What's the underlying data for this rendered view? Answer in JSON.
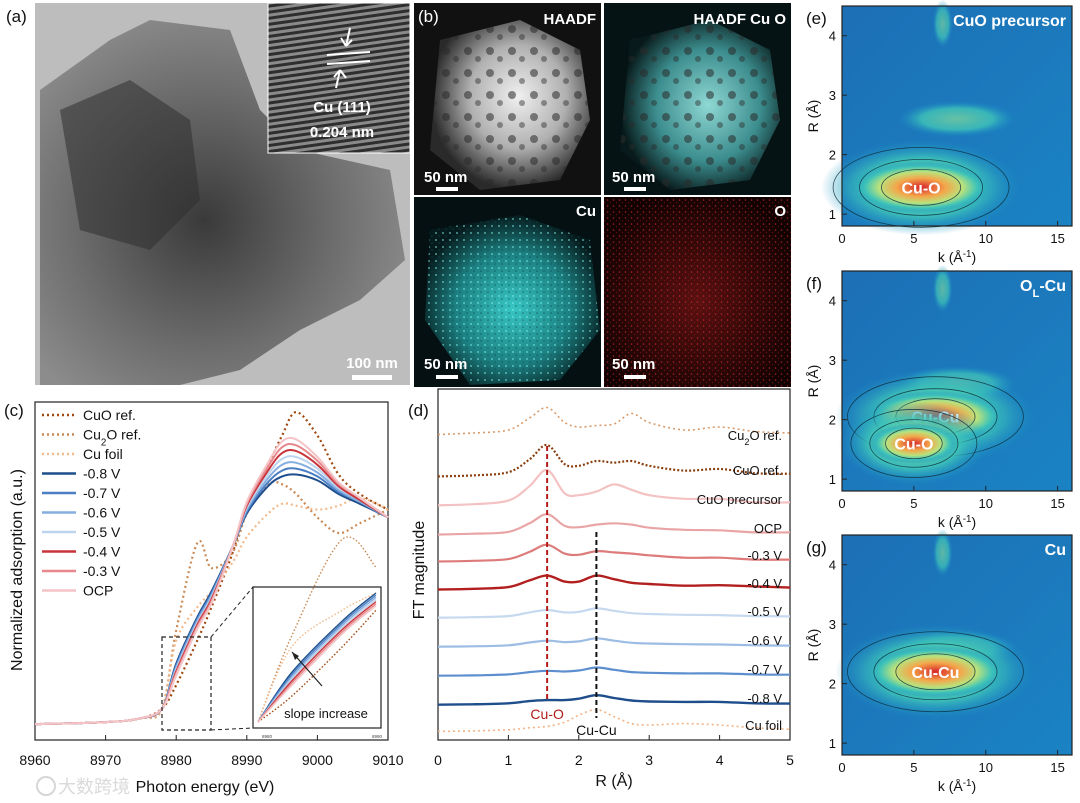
{
  "panels": {
    "a": {
      "label": "(a)",
      "inset_label": "Cu (111)",
      "inset_spacing": "0.204 nm",
      "scale_bar": "100 nm"
    },
    "b": {
      "label": "(b)",
      "tiles": [
        {
          "title": "HAADF",
          "scale_bar": "50 nm"
        },
        {
          "title": "HAADF Cu O",
          "scale_bar": "50 nm"
        },
        {
          "title": "Cu",
          "scale_bar": "50 nm"
        },
        {
          "title": "O",
          "scale_bar": "50 nm"
        }
      ]
    },
    "c": {
      "label": "(c)",
      "xlabel": "Photon energy (eV)",
      "ylabel": "Normalized adsorption (a.u.)",
      "xticks": [
        "8960",
        "8970",
        "8980",
        "8990",
        "9000",
        "9010"
      ],
      "inset_annotation": "slope increase",
      "inset_ticks": [
        "8980",
        "8990"
      ],
      "legend": [
        {
          "prefix": "CuO ref.",
          "sub": "",
          "suffix": "",
          "color": "#a0480f",
          "dash": "2,3"
        },
        {
          "prefix": "Cu",
          "sub": "2",
          "suffix": "O ref.",
          "color": "#c98a55",
          "dash": "2,3"
        },
        {
          "prefix": "Cu foil",
          "sub": "",
          "suffix": "",
          "color": "#f2b98a",
          "dash": "2,3"
        },
        {
          "prefix": "-0.8 V",
          "sub": "",
          "suffix": "",
          "color": "#1f4e8c",
          "dash": ""
        },
        {
          "prefix": "-0.7 V",
          "sub": "",
          "suffix": "",
          "color": "#4a7fc4",
          "dash": ""
        },
        {
          "prefix": "-0.6 V",
          "sub": "",
          "suffix": "",
          "color": "#86aee0",
          "dash": ""
        },
        {
          "prefix": "-0.5 V",
          "sub": "",
          "suffix": "",
          "color": "#bcd4ee",
          "dash": ""
        },
        {
          "prefix": "-0.4 V",
          "sub": "",
          "suffix": "",
          "color": "#c9343a",
          "dash": ""
        },
        {
          "prefix": "-0.3 V",
          "sub": "",
          "suffix": "",
          "color": "#e8888d",
          "dash": ""
        },
        {
          "prefix": "OCP",
          "sub": "",
          "suffix": "",
          "color": "#f4c4c6",
          "dash": ""
        }
      ]
    },
    "d": {
      "label": "(d)",
      "xlabel": "R (Å)",
      "ylabel": "FT magnitude",
      "xticks": [
        "0",
        "1",
        "2",
        "3",
        "4",
        "5"
      ],
      "marker_cuo": "Cu-O",
      "marker_cucu": "Cu-Cu",
      "traces": [
        {
          "prefix": "Cu",
          "sub": "2",
          "suffix": "O ref.",
          "color": "#d89a6a",
          "dash": "2,3",
          "width": 1.6
        },
        {
          "prefix": "CuO ref.",
          "sub": "",
          "suffix": "",
          "color": "#8a3f0f",
          "dash": "2,2",
          "width": 2.2
        },
        {
          "prefix": "CuO precursor",
          "sub": "",
          "suffix": "",
          "color": "#f4c2c2",
          "dash": "",
          "width": 2.2
        },
        {
          "prefix": "OCP",
          "sub": "",
          "suffix": "",
          "color": "#e9a5a5",
          "dash": "",
          "width": 2.2
        },
        {
          "prefix": "-0.3 V",
          "sub": "",
          "suffix": "",
          "color": "#dd7b7b",
          "dash": "",
          "width": 2.2
        },
        {
          "prefix": "-0.4 V",
          "sub": "",
          "suffix": "",
          "color": "#b21f1f",
          "dash": "",
          "width": 2.4
        },
        {
          "prefix": "-0.5 V",
          "sub": "",
          "suffix": "",
          "color": "#c6d9ef",
          "dash": "",
          "width": 2.2
        },
        {
          "prefix": "-0.6 V",
          "sub": "",
          "suffix": "",
          "color": "#9dbce3",
          "dash": "",
          "width": 2.2
        },
        {
          "prefix": "-0.7 V",
          "sub": "",
          "suffix": "",
          "color": "#5d8fcf",
          "dash": "",
          "width": 2.2
        },
        {
          "prefix": "-0.8 V",
          "sub": "",
          "suffix": "",
          "color": "#1f4e8c",
          "dash": "",
          "width": 2.4
        },
        {
          "prefix": "Cu foil",
          "sub": "",
          "suffix": "",
          "color": "#f2b487",
          "dash": "2,3",
          "width": 1.6
        }
      ]
    },
    "e": {
      "label": "(e)",
      "title": "CuO precursor",
      "title_sub": "",
      "title_suffix": "",
      "features": [
        "Cu-O"
      ],
      "xlabel": "k (Å",
      "xlabel_sup": "-1",
      "ylabel": "R (Å)",
      "xticks": [
        "0",
        "5",
        "10",
        "15"
      ],
      "yticks": [
        "1",
        "2",
        "3",
        "4"
      ]
    },
    "f": {
      "label": "(f)",
      "title": "O",
      "title_sub": "L",
      "title_suffix": "-Cu",
      "features": [
        "Cu-Cu",
        "Cu-O"
      ],
      "xlabel": "k (Å",
      "xlabel_sup": "-1",
      "ylabel": "R (Å)",
      "xticks": [
        "0",
        "5",
        "10",
        "15"
      ],
      "yticks": [
        "1",
        "2",
        "3",
        "4"
      ]
    },
    "g": {
      "label": "(g)",
      "title": "Cu",
      "title_sub": "",
      "title_suffix": "",
      "features": [
        "Cu-Cu"
      ],
      "xlabel": "k (Å",
      "xlabel_sup": "-1",
      "ylabel": "R (Å)",
      "xticks": [
        "0",
        "5",
        "10",
        "15"
      ],
      "yticks": [
        "1",
        "2",
        "3",
        "4"
      ]
    }
  },
  "watermark": "大数跨境",
  "chart_data": [
    {
      "type": "line",
      "panel": "c",
      "title": "",
      "xlabel": "Photon energy (eV)",
      "ylabel": "Normalized adsorption (a.u.)",
      "xlim": [
        8960,
        9010
      ],
      "x": [
        8960,
        8970,
        8975,
        8978,
        8980,
        8983,
        8985,
        8988,
        8990,
        8993,
        8995,
        8997,
        9000,
        9003,
        9006,
        9010
      ],
      "series": [
        {
          "name": "CuO ref.",
          "values": [
            0.02,
            0.03,
            0.05,
            0.1,
            0.22,
            0.45,
            0.62,
            0.9,
            1.15,
            1.35,
            1.5,
            1.62,
            1.5,
            1.3,
            1.2,
            1.12
          ]
        },
        {
          "name": "Cu2O ref.",
          "values": [
            0.02,
            0.03,
            0.05,
            0.1,
            0.5,
            0.95,
            0.82,
            0.9,
            1.1,
            1.25,
            1.25,
            1.2,
            1.08,
            1.0,
            1.05,
            1.12
          ]
        },
        {
          "name": "Cu foil",
          "values": [
            0.02,
            0.03,
            0.05,
            0.1,
            0.45,
            0.62,
            0.7,
            0.85,
            0.98,
            1.1,
            1.15,
            1.14,
            1.12,
            1.14,
            1.18,
            1.12
          ]
        },
        {
          "name": "-0.8 V",
          "values": [
            0.02,
            0.03,
            0.05,
            0.1,
            0.33,
            0.57,
            0.7,
            0.93,
            1.1,
            1.24,
            1.29,
            1.3,
            1.27,
            1.2,
            1.15,
            1.08
          ]
        },
        {
          "name": "-0.7 V",
          "values": [
            0.02,
            0.03,
            0.05,
            0.1,
            0.32,
            0.56,
            0.69,
            0.93,
            1.11,
            1.26,
            1.32,
            1.33,
            1.29,
            1.21,
            1.16,
            1.08
          ]
        },
        {
          "name": "-0.6 V",
          "values": [
            0.02,
            0.03,
            0.05,
            0.1,
            0.31,
            0.55,
            0.68,
            0.93,
            1.12,
            1.28,
            1.35,
            1.36,
            1.31,
            1.22,
            1.16,
            1.08
          ]
        },
        {
          "name": "-0.5 V",
          "values": [
            0.02,
            0.03,
            0.05,
            0.1,
            0.3,
            0.54,
            0.67,
            0.93,
            1.13,
            1.3,
            1.38,
            1.39,
            1.33,
            1.23,
            1.17,
            1.08
          ]
        },
        {
          "name": "-0.4 V",
          "values": [
            0.02,
            0.03,
            0.05,
            0.1,
            0.29,
            0.53,
            0.66,
            0.93,
            1.14,
            1.32,
            1.41,
            1.42,
            1.35,
            1.24,
            1.17,
            1.08
          ]
        },
        {
          "name": "-0.3 V",
          "values": [
            0.02,
            0.03,
            0.05,
            0.1,
            0.28,
            0.52,
            0.65,
            0.93,
            1.15,
            1.34,
            1.44,
            1.45,
            1.37,
            1.25,
            1.18,
            1.08
          ]
        },
        {
          "name": "OCP",
          "values": [
            0.02,
            0.03,
            0.05,
            0.1,
            0.27,
            0.51,
            0.64,
            0.93,
            1.16,
            1.36,
            1.47,
            1.48,
            1.39,
            1.26,
            1.18,
            1.08
          ]
        }
      ]
    },
    {
      "type": "line",
      "panel": "d",
      "title": "",
      "xlabel": "R (Å)",
      "ylabel": "FT magnitude",
      "xlim": [
        0,
        5
      ],
      "x": [
        0,
        0.5,
        1.0,
        1.3,
        1.55,
        1.8,
        2.0,
        2.25,
        2.5,
        2.75,
        3.0,
        3.5,
        4.0,
        4.5,
        5.0
      ],
      "peaks": {
        "Cu-O": 1.55,
        "Cu-Cu": 2.25
      },
      "series": [
        {
          "name": "Cu2O ref.",
          "values": [
            0.05,
            0.1,
            0.2,
            0.6,
            0.95,
            0.45,
            0.3,
            0.35,
            0.4,
            0.75,
            0.45,
            0.2,
            0.3,
            0.15,
            0.1
          ]
        },
        {
          "name": "CuO ref.",
          "values": [
            0.02,
            0.05,
            0.15,
            0.55,
            1.0,
            0.4,
            0.35,
            0.5,
            0.45,
            0.5,
            0.35,
            0.2,
            0.25,
            0.12,
            0.1
          ]
        },
        {
          "name": "CuO precursor",
          "values": [
            0.02,
            0.05,
            0.15,
            0.55,
            1.0,
            0.35,
            0.3,
            0.4,
            0.6,
            0.45,
            0.3,
            0.2,
            0.2,
            0.1,
            0.1
          ]
        },
        {
          "name": "OCP",
          "values": [
            0.02,
            0.05,
            0.12,
            0.45,
            0.8,
            0.35,
            0.3,
            0.4,
            0.45,
            0.4,
            0.28,
            0.2,
            0.18,
            0.1,
            0.1
          ]
        },
        {
          "name": "-0.3 V",
          "values": [
            0.02,
            0.05,
            0.12,
            0.42,
            0.72,
            0.35,
            0.3,
            0.45,
            0.4,
            0.35,
            0.28,
            0.18,
            0.18,
            0.1,
            0.1
          ]
        },
        {
          "name": "-0.4 V",
          "values": [
            0.02,
            0.05,
            0.12,
            0.4,
            0.6,
            0.35,
            0.35,
            0.6,
            0.45,
            0.3,
            0.25,
            0.18,
            0.2,
            0.15,
            0.1
          ]
        },
        {
          "name": "-0.5 V",
          "values": [
            0.02,
            0.05,
            0.12,
            0.35,
            0.5,
            0.35,
            0.38,
            0.6,
            0.45,
            0.3,
            0.25,
            0.2,
            0.18,
            0.12,
            0.1
          ]
        },
        {
          "name": "-0.6 V",
          "values": [
            0.02,
            0.05,
            0.12,
            0.32,
            0.45,
            0.35,
            0.4,
            0.62,
            0.45,
            0.3,
            0.25,
            0.2,
            0.18,
            0.12,
            0.1
          ]
        },
        {
          "name": "-0.7 V",
          "values": [
            0.02,
            0.05,
            0.12,
            0.3,
            0.4,
            0.35,
            0.42,
            0.65,
            0.48,
            0.3,
            0.25,
            0.2,
            0.2,
            0.12,
            0.1
          ]
        },
        {
          "name": "-0.8 V",
          "values": [
            0.02,
            0.05,
            0.12,
            0.28,
            0.35,
            0.35,
            0.45,
            0.7,
            0.5,
            0.32,
            0.25,
            0.22,
            0.22,
            0.12,
            0.1
          ]
        },
        {
          "name": "Cu foil",
          "values": [
            0.02,
            0.04,
            0.08,
            0.15,
            0.2,
            0.35,
            0.6,
            0.8,
            0.55,
            0.3,
            0.25,
            0.3,
            0.25,
            0.15,
            0.1
          ]
        }
      ]
    },
    {
      "type": "heatmap",
      "panel": "e",
      "title": "CuO precursor",
      "xlabel": "k (Å-1)",
      "ylabel": "R (Å)",
      "xlim": [
        0,
        16
      ],
      "ylim": [
        0.8,
        4.5
      ],
      "maxima": [
        {
          "label": "Cu-O",
          "k": 5.5,
          "R": 1.45
        }
      ]
    },
    {
      "type": "heatmap",
      "panel": "f",
      "title": "OL-Cu",
      "xlabel": "k (Å-1)",
      "ylabel": "R (Å)",
      "xlim": [
        0,
        16
      ],
      "ylim": [
        0.8,
        4.5
      ],
      "maxima": [
        {
          "label": "Cu-Cu",
          "k": 6.5,
          "R": 2.05
        },
        {
          "label": "Cu-O",
          "k": 5.0,
          "R": 1.6
        }
      ]
    },
    {
      "type": "heatmap",
      "panel": "g",
      "title": "Cu",
      "xlabel": "k (Å-1)",
      "ylabel": "R (Å)",
      "xlim": [
        0,
        16
      ],
      "ylim": [
        0.8,
        4.5
      ],
      "maxima": [
        {
          "label": "Cu-Cu",
          "k": 6.5,
          "R": 2.2
        }
      ]
    }
  ]
}
